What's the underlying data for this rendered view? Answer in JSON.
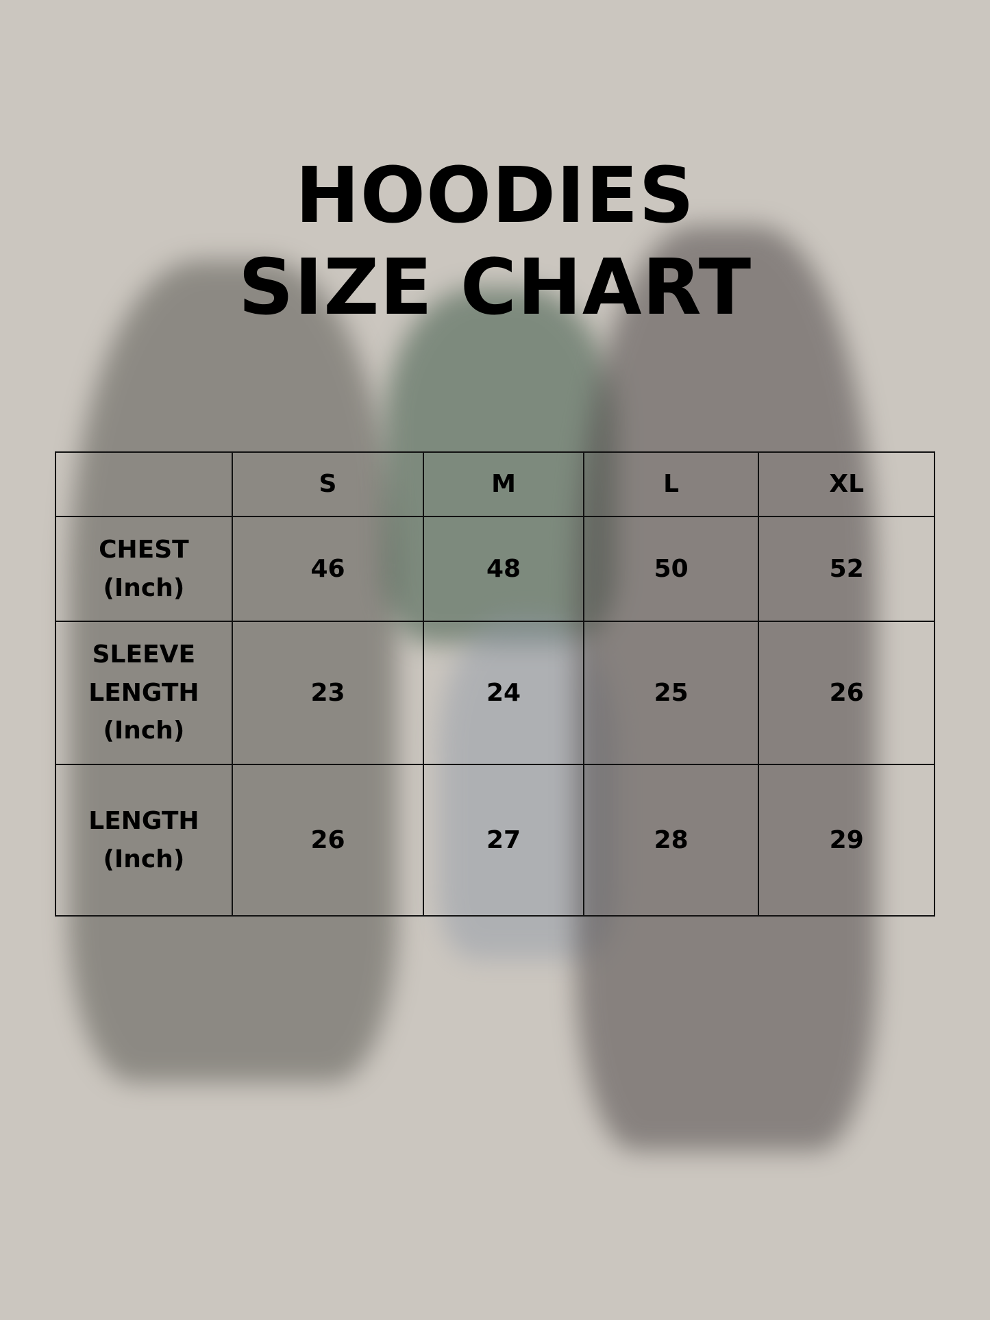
{
  "title": {
    "line1": "HOODIES",
    "line2": "SIZE CHART"
  },
  "table": {
    "headers": [
      "",
      "S",
      "M",
      "L",
      "XL"
    ],
    "rows": [
      {
        "label": [
          "CHEST",
          "(Inch)"
        ],
        "values": [
          "46",
          "48",
          "50",
          "52"
        ]
      },
      {
        "label": [
          "SLEEVE",
          "LENGTH",
          "(Inch)"
        ],
        "values": [
          "23",
          "24",
          "25",
          "26"
        ]
      },
      {
        "label": [
          "LENGTH",
          "(Inch)"
        ],
        "values": [
          "26",
          "27",
          "28",
          "29"
        ]
      }
    ]
  },
  "colors": {
    "background": "#cbc6bf",
    "text": "#000000",
    "grid": "#111111"
  }
}
